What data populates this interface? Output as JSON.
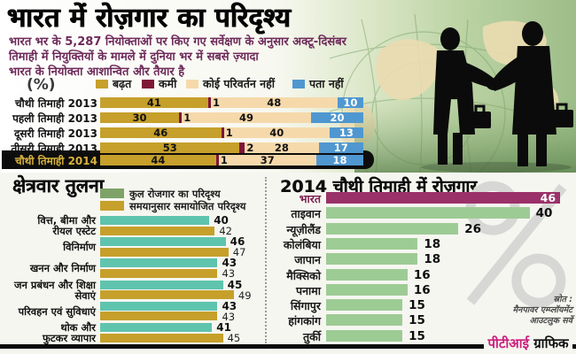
{
  "header": {
    "title": "भारत में रोज़गार का परिदृश्य",
    "subtitle_lines": [
      "भारत भर के 5,287 नियोक्ताओं पर किए गए सर्वेक्षण के अनुसार अक्टू-दिसंबर",
      "तिमाही में नियुक्तियों के मामले में दुनिया भर में सबसे ज़्यादा",
      "भारत के नियोक्ता आशान्वित और तैयार है"
    ],
    "unit_label": "(%)"
  },
  "colors": {
    "gold": "#c6a02b",
    "maroon": "#7e1638",
    "tan": "#f6d9ab",
    "blue": "#4f97d0",
    "teal": "#5fc4ae",
    "legend_green": "#7ea368",
    "country_green": "#9dcb94",
    "india_magenta": "#9b3169",
    "india_label": "#7d2150",
    "highlight_strip": "#0d0d0d",
    "highlight_label_gold": "#d8b23c",
    "subtitle_purple": "#6e2a5a",
    "pti_magenta": "#cc1f7e"
  },
  "chart_data": [
    {
      "type": "bar",
      "subtype": "horizontal-stacked",
      "unit": "%",
      "legend": [
        "बढ़त",
        "कमी",
        "कोई परिवर्तन नहीं",
        "पता नहीं"
      ],
      "legend_colors": [
        "#c6a02b",
        "#7e1638",
        "#f6d9ab",
        "#4f97d0"
      ],
      "categories": [
        "चौथी तिमाही 2013",
        "पहली तिमाही 2013",
        "दूसरी तिमाही 2013",
        "तीसरी तिमाही 2013",
        "चौथी तिमाही 2014"
      ],
      "highlighted_category": "चौथी तिमाही 2014",
      "series": [
        {
          "name": "बढ़त",
          "values": [
            41,
            30,
            46,
            53,
            44
          ]
        },
        {
          "name": "कमी",
          "values": [
            1,
            1,
            1,
            2,
            1
          ]
        },
        {
          "name": "कोई परिवर्तन नहीं",
          "values": [
            48,
            49,
            40,
            28,
            37
          ]
        },
        {
          "name": "पता नहीं",
          "values": [
            10,
            20,
            13,
            17,
            18
          ]
        }
      ],
      "xlim": [
        0,
        100
      ]
    },
    {
      "type": "bar",
      "subtype": "horizontal-grouped",
      "title": "क्षेत्रवार तुलना",
      "unit": "%",
      "legend": [
        "कुल रोजगार का परिदृश्य",
        "समयानुसार समायोजित परिदृश्य"
      ],
      "legend_colors": [
        "#7ea368",
        "#c6a02b"
      ],
      "bar_colors": [
        "#5fc4ae",
        "#c6a02b"
      ],
      "categories": [
        "वित्त, बीमा और\nरीयल एस्टेट",
        "विनिर्माण",
        "खनन और निर्माण",
        "जन प्रबंधन और शिक्षा\nसेवाएं",
        "परिवहन एवं सुविधाएं",
        "थोक और\nफुटकर व्यापार"
      ],
      "series": [
        {
          "name": "कुल रोजगार का परिदृश्य",
          "values": [
            40,
            46,
            43,
            45,
            43,
            41
          ]
        },
        {
          "name": "समयानुसार समायोजित परिदृश्य",
          "values": [
            42,
            47,
            43,
            49,
            43,
            45
          ]
        }
      ]
    },
    {
      "type": "bar",
      "subtype": "horizontal",
      "title": "2014 चौथी तिमाही में रोज़गार",
      "unit": "%",
      "categories": [
        "भारत",
        "ताइवान",
        "न्यूज़ीलैंड",
        "कोलंबिया",
        "जापान",
        "मैक्सिको",
        "पनामा",
        "सिंगापुर",
        "हांगकांग",
        "तुर्की"
      ],
      "values": [
        46,
        40,
        26,
        18,
        18,
        16,
        16,
        15,
        15,
        15
      ],
      "highlighted_category": "भारत",
      "watermark": "%"
    }
  ],
  "source": {
    "lines": [
      "स्रोत :",
      "मैनपावर एम्प्लॉयमेंट",
      "आउटलुक सर्वे"
    ]
  },
  "credit": {
    "agency": "पीटीआई",
    "word": " ग्राफिक"
  }
}
